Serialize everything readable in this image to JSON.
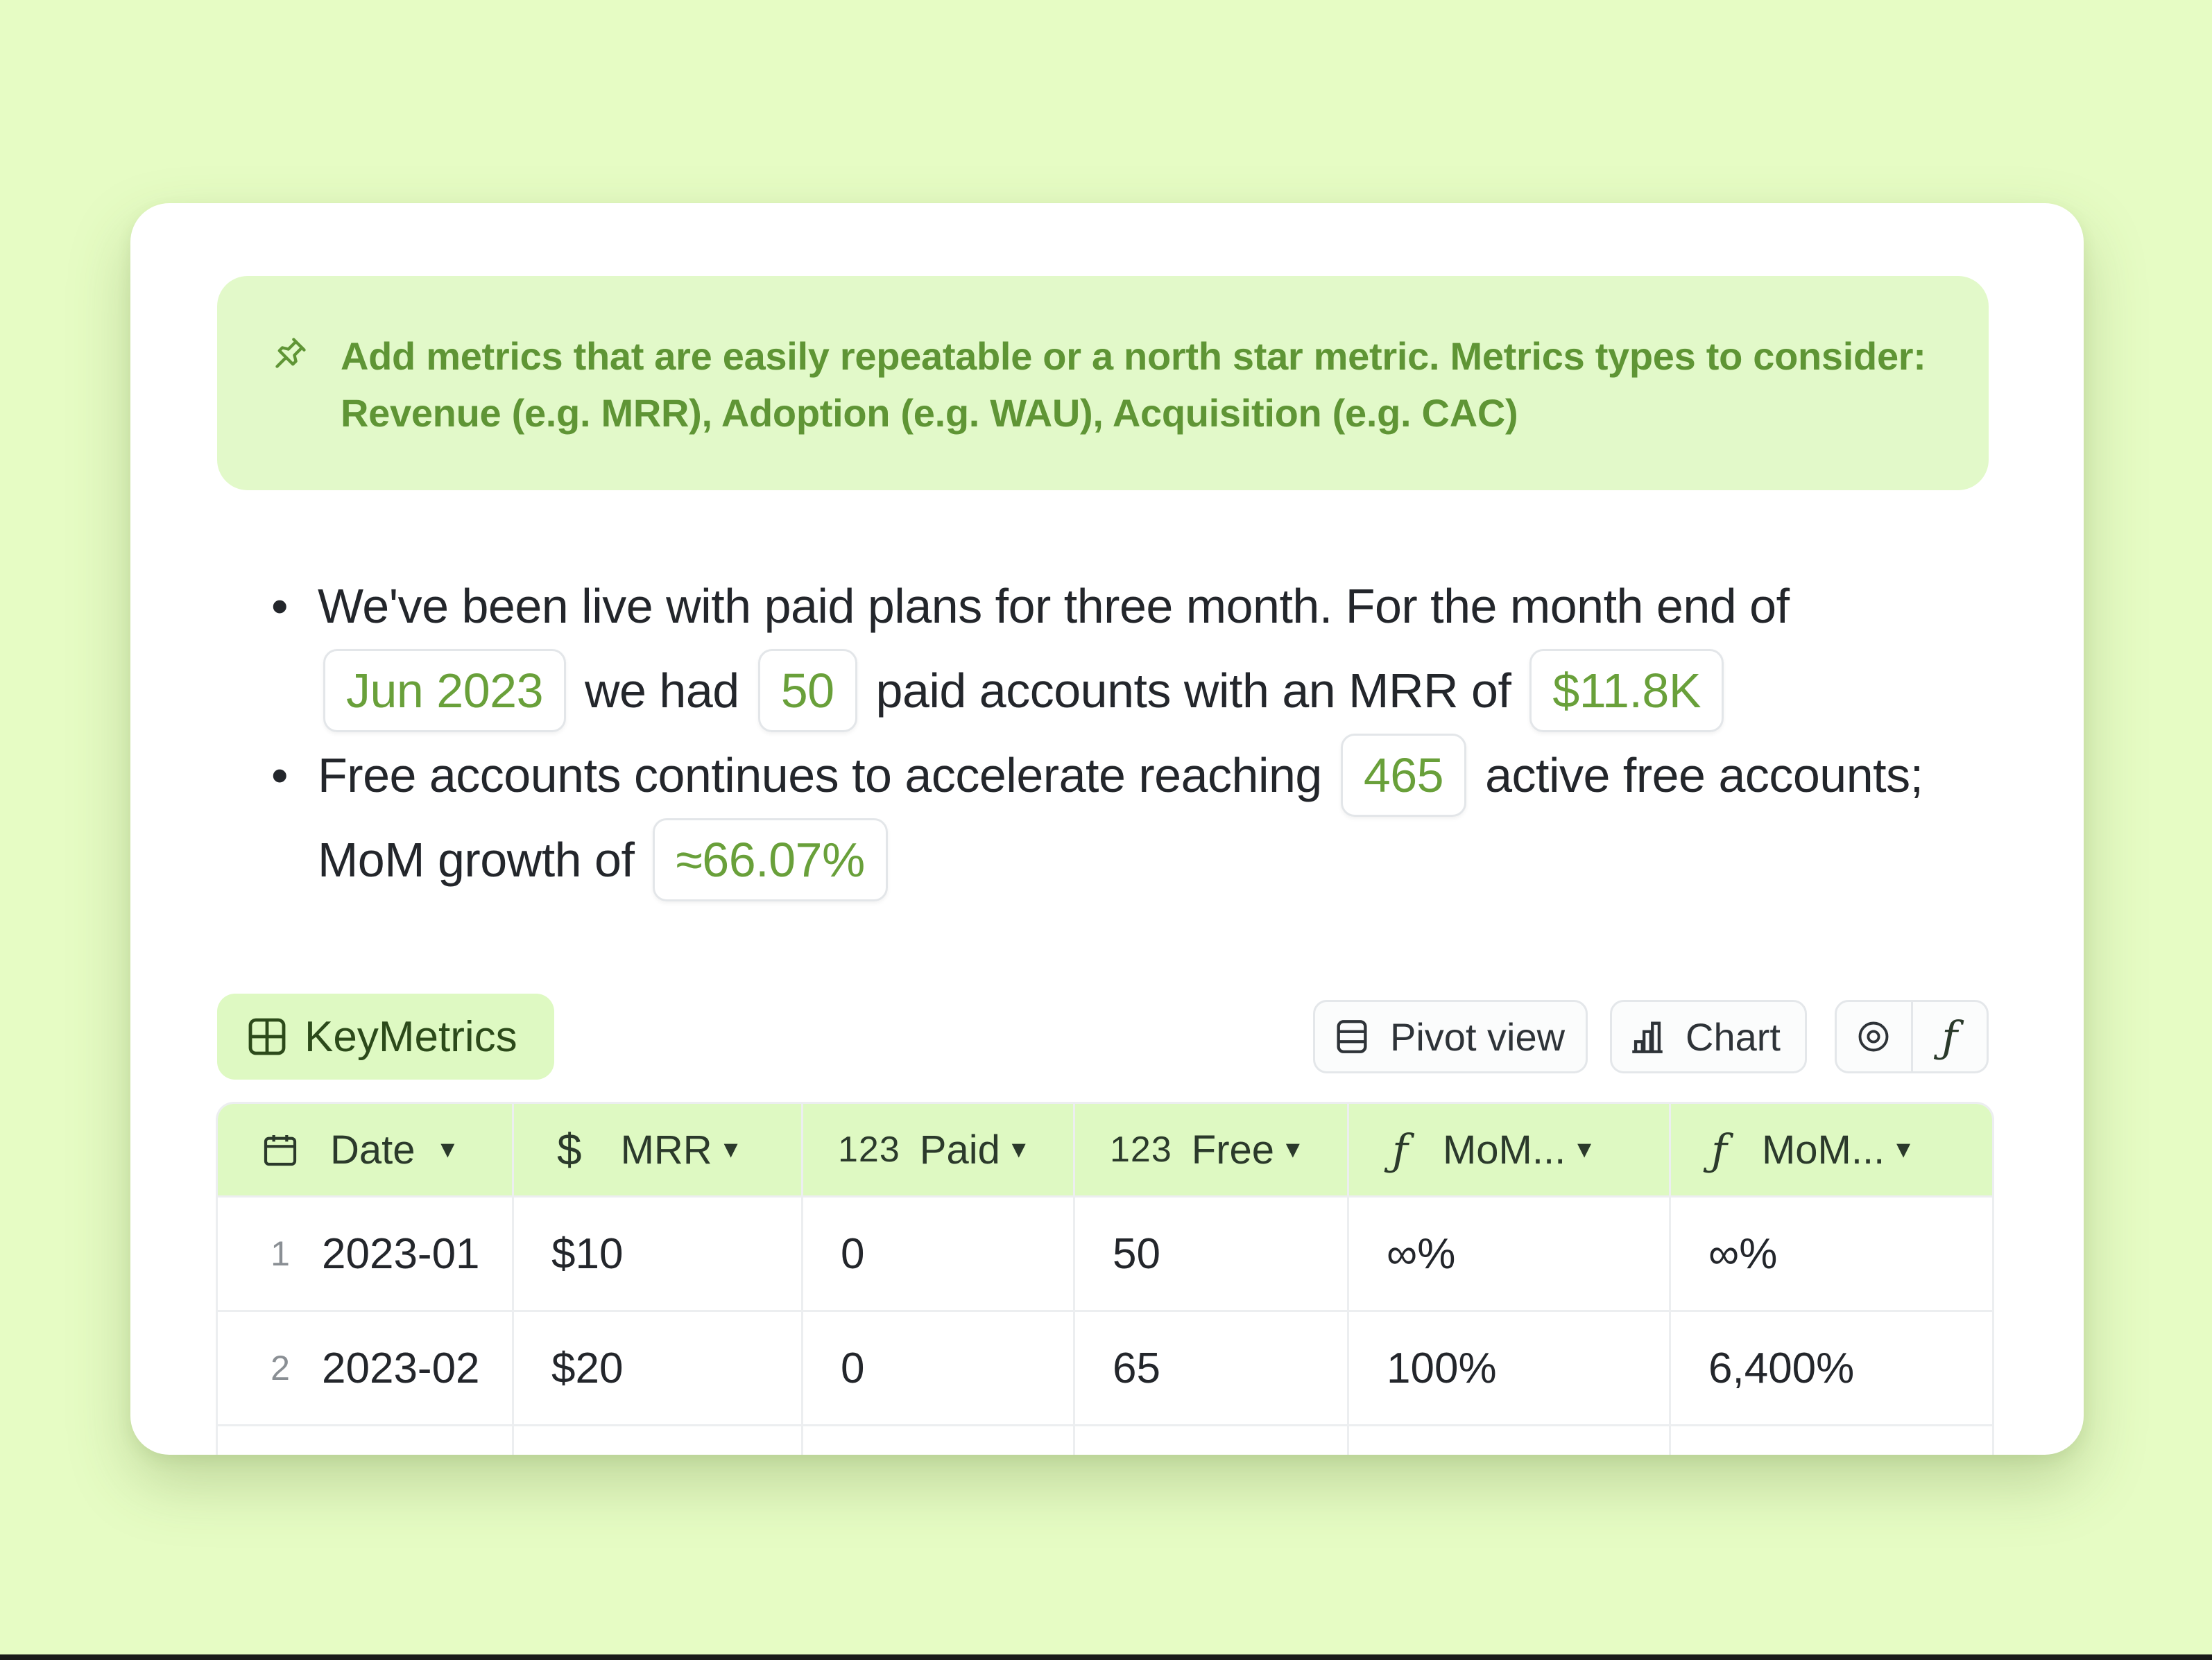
{
  "callout": {
    "icon": "pin-icon",
    "text_line1": "Add metrics that are easily repeatable or a north star metric. Metrics types to consider:",
    "text_line2": "Revenue (e.g. MRR), Adoption (e.g. WAU), Acquisition (e.g. CAC)"
  },
  "summary": {
    "b1_a": "We've been live with paid plans for three month. For the month end of",
    "b1_chip_month": "Jun 2023",
    "b1_b": "we had",
    "b1_chip_paid": "50",
    "b1_c": "paid accounts with an MRR of",
    "b1_chip_mrr": "$11.8K",
    "b2_a": "Free accounts continues to accelerate reaching",
    "b2_chip_free": "465",
    "b2_b": "active free accounts;",
    "b2_c": "MoM growth of",
    "b2_chip_growth": "≈66.07%"
  },
  "toolbar": {
    "table_name": "KeyMetrics",
    "pivot_label": "Pivot view",
    "chart_label": "Chart"
  },
  "table": {
    "headers": {
      "date": "Date",
      "mrr_prefix": "$",
      "mrr": "MRR",
      "paid_prefix": "123",
      "paid": "Paid",
      "free_prefix": "123",
      "free": "Free",
      "mom1": "MoM...",
      "mom2": "MoM..."
    },
    "rows": [
      {
        "num": "1",
        "date": "2023-01",
        "mrr": "$10",
        "paid": "0",
        "free": "50",
        "mom1": "∞%",
        "mom2": "∞%"
      },
      {
        "num": "2",
        "date": "2023-02",
        "mrr": "$20",
        "paid": "0",
        "free": "65",
        "mom1": "100%",
        "mom2": "6,400%"
      }
    ]
  },
  "colors": {
    "background": "#e6fcc4",
    "accent_green": "#69a03a",
    "callout_bg": "#e2f9c9",
    "header_bg": "#def9c2"
  }
}
